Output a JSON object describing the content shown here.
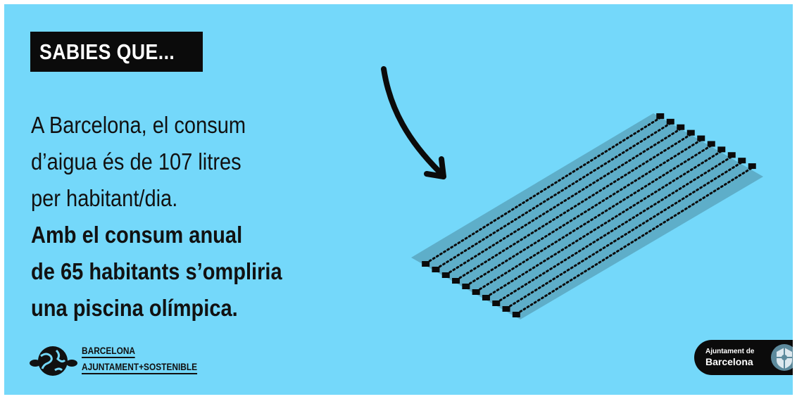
{
  "header": {
    "tag": "SABIES QUE..."
  },
  "body": {
    "lines": [
      "A Barcelona, el consum",
      "d’aigua és de 107 litres",
      "per habitant/dia.",
      "Amb el consum anual",
      "de 65 habitants s’ompliria",
      "una piscina olímpica."
    ]
  },
  "footer": {
    "left_logo": {
      "line1": "BARCELONA",
      "line2": "AJUNTAMENT+SOSTENIBLE"
    },
    "right_logo": {
      "line1": "Ajuntament de",
      "line2": "Barcelona"
    }
  },
  "colors": {
    "background": "#74d8fa",
    "text": "#111111",
    "pool": "#5eaec9"
  },
  "icons": [
    "arrow-icon",
    "globe-icon",
    "city-seal-icon"
  ],
  "illustration": {
    "subject": "olympic-swimming-pool",
    "lanes": 10
  }
}
